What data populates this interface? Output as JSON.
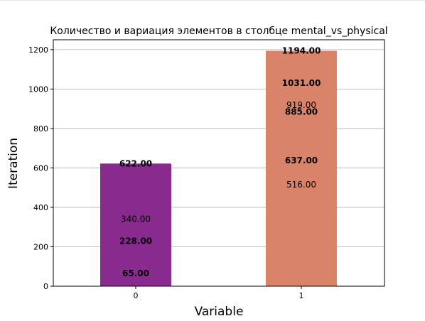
{
  "chart_data": {
    "type": "bar",
    "title": "Количество и вариация элементов в столбце mental_vs_physical",
    "xlabel": "Variable",
    "ylabel": "Iteration",
    "categories": [
      "0",
      "1"
    ],
    "values": [
      622,
      1194
    ],
    "ylim": [
      0,
      1250
    ],
    "yticks": [
      0,
      200,
      400,
      600,
      800,
      1000,
      1200
    ],
    "grid": "horizontal",
    "colors": [
      "#882a8e",
      "#d98368"
    ],
    "labels": [
      [
        {
          "value": 622.0,
          "text": "622.00",
          "bold": true
        },
        {
          "value": 340.0,
          "text": "340.00",
          "bold": false
        },
        {
          "value": 228.0,
          "text": "228.00",
          "bold": true
        },
        {
          "value": 65.0,
          "text": "65.00",
          "bold": true
        }
      ],
      [
        {
          "value": 1194.0,
          "text": "1194.00",
          "bold": true
        },
        {
          "value": 1031.0,
          "text": "1031.00",
          "bold": true
        },
        {
          "value": 919.0,
          "text": "919.00",
          "bold": false
        },
        {
          "value": 885.0,
          "text": "885.00",
          "bold": true
        },
        {
          "value": 637.0,
          "text": "637.00",
          "bold": true
        },
        {
          "value": 516.0,
          "text": "516.00",
          "bold": false
        }
      ]
    ]
  }
}
